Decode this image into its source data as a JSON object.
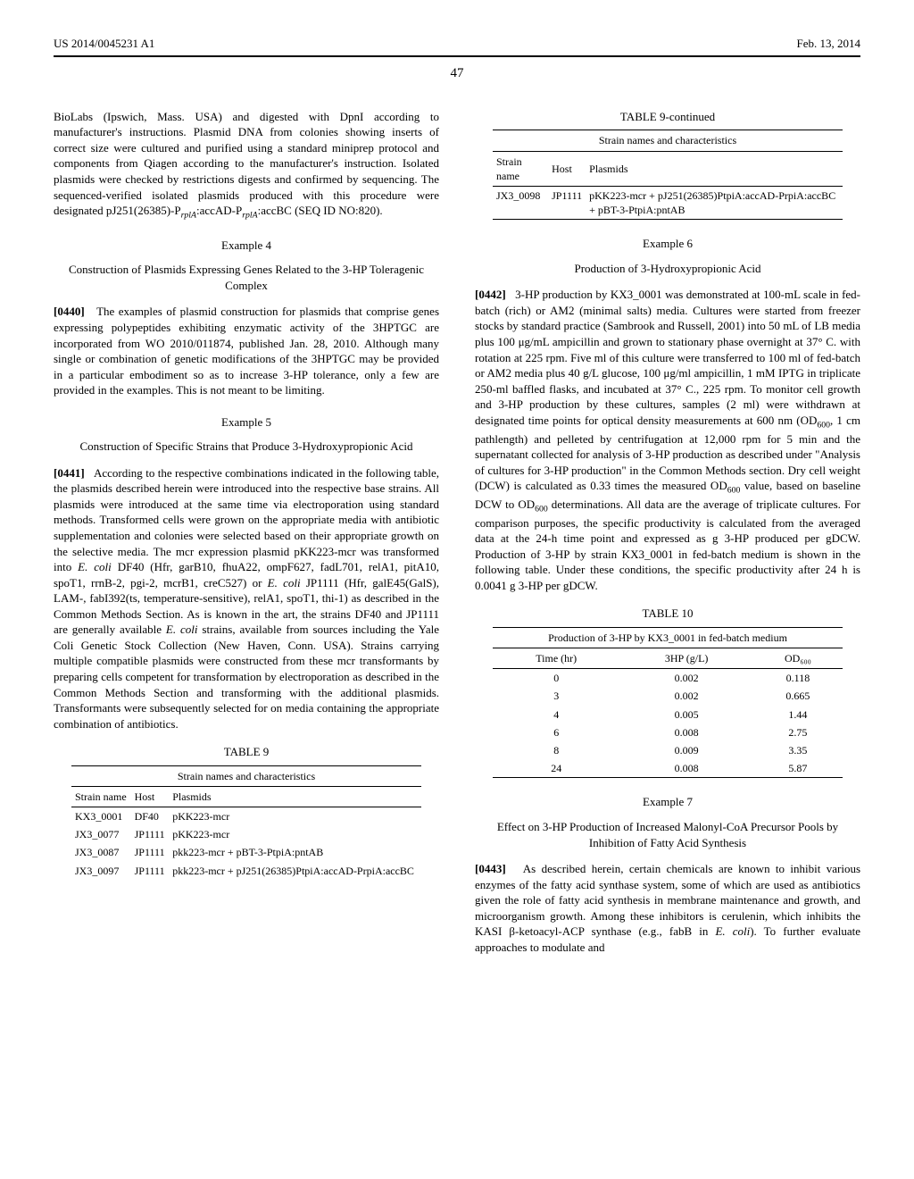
{
  "header": {
    "left": "US 2014/0045231 A1",
    "right": "Feb. 13, 2014",
    "page": "47"
  },
  "left": {
    "para_intro": "BioLabs (Ipswich, Mass. USA) and digested with DpnI according to manufacturer's instructions. Plasmid DNA from colonies showing inserts of correct size were cultured and purified using a standard miniprep protocol and components from Qiagen according to the manufacturer's instruction. Isolated plasmids were checked by restrictions digests and confirmed by sequencing. The sequenced-verified isolated plasmids produced with this procedure were designated pJ251(26385)-P",
    "para_intro_sub1": "rplA",
    "para_intro_mid": ":accAD-P",
    "para_intro_sub2": "rplA",
    "para_intro_end": ":accBC (SEQ ID NO:820).",
    "ex4": {
      "label": "Example 4",
      "title": "Construction of Plasmids Expressing Genes Related to the 3-HP Toleragenic Complex",
      "num": "[0440]",
      "body": "The examples of plasmid construction for plasmids that comprise genes expressing polypeptides exhibiting enzymatic activity of the 3HPTGC are incorporated from WO 2010/011874, published Jan. 28, 2010. Although many single or combination of genetic modifications of the 3HPTGC may be provided in a particular embodiment so as to increase 3-HP tolerance, only a few are provided in the examples. This is not meant to be limiting."
    },
    "ex5": {
      "label": "Example 5",
      "title": "Construction of Specific Strains that Produce 3-Hydroxypropionic Acid",
      "num": "[0441]",
      "body_a": "According to the respective combinations indicated in the following table, the plasmids described herein were introduced into the respective base strains. All plasmids were introduced at the same time via electroporation using standard methods. Transformed cells were grown on the appropriate media with antibiotic supplementation and colonies were selected based on their appropriate growth on the selective media. The mcr expression plasmid pKK223-mcr was transformed into ",
      "body_b": "E. coli",
      "body_c": " DF40 (Hfr, garB10, fhuA22, ompF627, fadL701, relA1, pitA10, spoT1, rrnB-2, pgi-2, mcrB1, creC527) or ",
      "body_d": "E. coli",
      "body_e": " JP1111 (Hfr, galE45(GalS), LAM-, fabI392(ts, temperature-sensitive), relA1, spoT1, thi-1) as described in the Common Methods Section. As is known in the art, the strains DF40 and JP1111 are generally available ",
      "body_f": "E. coli",
      "body_g": " strains, available from sources including the Yale Coli Genetic Stock Collection (New Haven, Conn. USA). Strains carrying multiple compatible plasmids were constructed from these mcr transformants by preparing cells competent for transformation by electroporation as described in the Common Methods Section and transforming with the additional plasmids. Transformants were subsequently selected for on media containing the appropriate combination of antibiotics."
    },
    "table9": {
      "caption": "TABLE 9",
      "sub": "Strain names and characteristics",
      "headers": [
        "Strain name",
        "Host",
        "Plasmids"
      ],
      "rows": [
        [
          "KX3_0001",
          "DF40",
          "pKK223-mcr"
        ],
        [
          "JX3_0077",
          "JP1111",
          "pKK223-mcr"
        ],
        [
          "JX3_0087",
          "JP1111",
          "pkk223-mcr + pBT-3-PtpiA:pntAB"
        ],
        [
          "JX3_0097",
          "JP1111",
          "pkk223-mcr + pJ251(26385)PtpiA:accAD-PrpiA:accBC"
        ]
      ]
    }
  },
  "right": {
    "table9c": {
      "caption": "TABLE 9-continued",
      "sub": "Strain names and characteristics",
      "headers": [
        "Strain name",
        "Host",
        "Plasmids"
      ],
      "rows": [
        [
          "JX3_0098",
          "JP1111",
          "pKK223-mcr + pJ251(26385)PtpiA:accAD-PrpiA:accBC + pBT-3-PtpiA:pntAB"
        ]
      ]
    },
    "ex6": {
      "label": "Example 6",
      "title": "Production of 3-Hydroxypropionic Acid",
      "num": "[0442]",
      "body_a": "3-HP production by KX3_0001 was demonstrated at 100-mL scale in fed-batch (rich) or AM2 (minimal salts) media. Cultures were started from freezer stocks by standard practice (Sambrook and Russell, 2001) into 50 mL of LB media plus 100 μg/mL ampicillin and grown to stationary phase overnight at 37° C. with rotation at 225 rpm. Five ml of this culture were transferred to 100 ml of fed-batch or AM2 media plus 40 g/L glucose, 100 μg/ml ampicillin, 1 mM IPTG in triplicate 250-ml baffled flasks, and incubated at 37° C., 225 rpm. To monitor cell growth and 3-HP production by these cultures, samples (2 ml) were withdrawn at designated time points for optical density measurements at 600 nm (OD",
      "sub600_a": "600",
      "body_b": ", 1 cm pathlength) and pelleted by centrifugation at 12,000 rpm for 5 min and the supernatant collected for analysis of 3-HP production as described under \"Analysis of cultures for 3-HP production\" in the Common Methods section. Dry cell weight (DCW) is calculated as 0.33 times the measured OD",
      "sub600_b": "600",
      "body_c": " value, based on baseline DCW to OD",
      "sub600_c": "600",
      "body_d": " determinations. All data are the average of triplicate cultures. For comparison purposes, the specific productivity is calculated from the averaged data at the 24-h time point and expressed as g 3-HP produced per gDCW. Production of 3-HP by strain KX3_0001 in fed-batch medium is shown in the following table. Under these conditions, the specific productivity after 24 h is 0.0041 g 3-HP per gDCW."
    },
    "table10": {
      "caption": "TABLE 10",
      "sub": "Production of 3-HP by KX3_0001 in fed-batch medium",
      "headers": [
        "Time (hr)",
        "3HP (g/L)",
        "OD₆₀₀"
      ],
      "rows": [
        [
          "0",
          "0.002",
          "0.118"
        ],
        [
          "3",
          "0.002",
          "0.665"
        ],
        [
          "4",
          "0.005",
          "1.44"
        ],
        [
          "6",
          "0.008",
          "2.75"
        ],
        [
          "8",
          "0.009",
          "3.35"
        ],
        [
          "24",
          "0.008",
          "5.87"
        ]
      ]
    },
    "ex7": {
      "label": "Example 7",
      "title": "Effect on 3-HP Production of Increased Malonyl-CoA Precursor Pools by Inhibition of Fatty Acid Synthesis",
      "num": "[0443]",
      "body_a": "As described herein, certain chemicals are known to inhibit various enzymes of the fatty acid synthase system, some of which are used as antibiotics given the role of fatty acid synthesis in membrane maintenance and growth, and microorganism growth. Among these inhibitors is cerulenin, which inhibits the KASI β-ketoacyl-ACP synthase (e.g., fabB in ",
      "body_b": "E. coli",
      "body_c": "). To further evaluate approaches to modulate and"
    }
  }
}
